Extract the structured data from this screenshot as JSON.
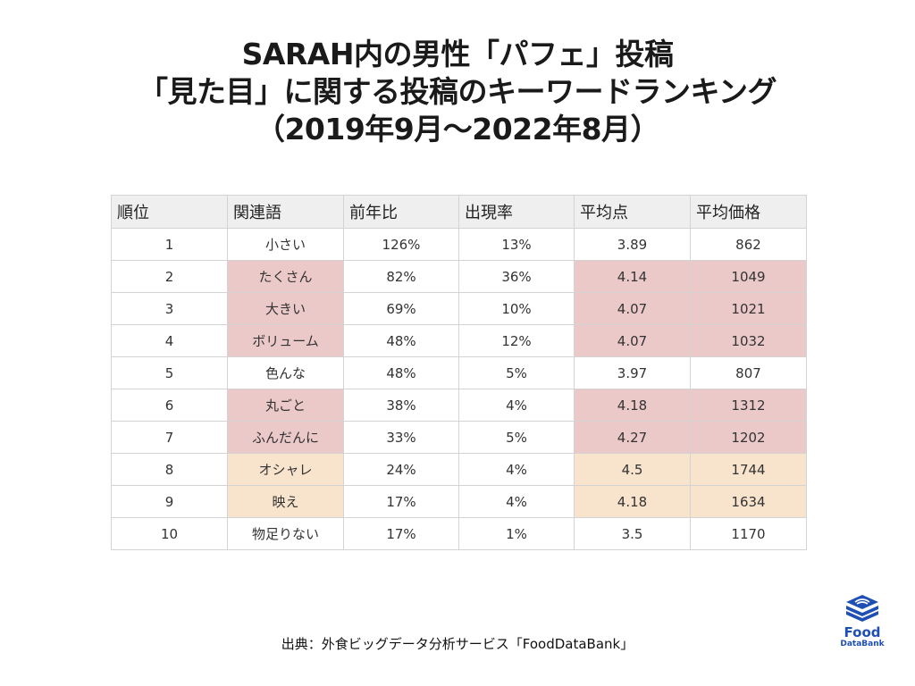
{
  "title": {
    "line1": "SARAH内の男性「パフェ」投稿",
    "line2": "「見た目」に関する投稿のキーワードランキング",
    "line3": "（2019年9月～2022年8月）"
  },
  "table": {
    "headers": [
      "順位",
      "関連語",
      "前年比",
      "出現率",
      "平均点",
      "平均価格"
    ],
    "rows": [
      {
        "rank": "1",
        "term": "小さい",
        "yoy": "126%",
        "rate": "13%",
        "score": "3.89",
        "price": "862",
        "highlight": "none"
      },
      {
        "rank": "2",
        "term": "たくさん",
        "yoy": "82%",
        "rate": "36%",
        "score": "4.14",
        "price": "1049",
        "highlight": "pink"
      },
      {
        "rank": "3",
        "term": "大きい",
        "yoy": "69%",
        "rate": "10%",
        "score": "4.07",
        "price": "1021",
        "highlight": "pink"
      },
      {
        "rank": "4",
        "term": "ボリューム",
        "yoy": "48%",
        "rate": "12%",
        "score": "4.07",
        "price": "1032",
        "highlight": "pink"
      },
      {
        "rank": "5",
        "term": "色んな",
        "yoy": "48%",
        "rate": "5%",
        "score": "3.97",
        "price": "807",
        "highlight": "none"
      },
      {
        "rank": "6",
        "term": "丸ごと",
        "yoy": "38%",
        "rate": "4%",
        "score": "4.18",
        "price": "1312",
        "highlight": "pink"
      },
      {
        "rank": "7",
        "term": "ふんだんに",
        "yoy": "33%",
        "rate": "5%",
        "score": "4.27",
        "price": "1202",
        "highlight": "pink"
      },
      {
        "rank": "8",
        "term": "オシャレ",
        "yoy": "24%",
        "rate": "4%",
        "score": "4.5",
        "price": "1744",
        "highlight": "peach"
      },
      {
        "rank": "9",
        "term": "映え",
        "yoy": "17%",
        "rate": "4%",
        "score": "4.18",
        "price": "1634",
        "highlight": "peach"
      },
      {
        "rank": "10",
        "term": "物足りない",
        "yoy": "17%",
        "rate": "1%",
        "score": "3.5",
        "price": "1170",
        "highlight": "none"
      }
    ]
  },
  "colors": {
    "pink": "#ecc9c9",
    "peach": "#f8e3cc",
    "header": "#efefef",
    "logo_blue": "#1e4fb5"
  },
  "source": "出典：外食ビッグデータ分析サービス「FoodDataBank」",
  "logo": {
    "icon": "stacked-layers-icon",
    "line1": "Food",
    "line2": "DataBank"
  }
}
